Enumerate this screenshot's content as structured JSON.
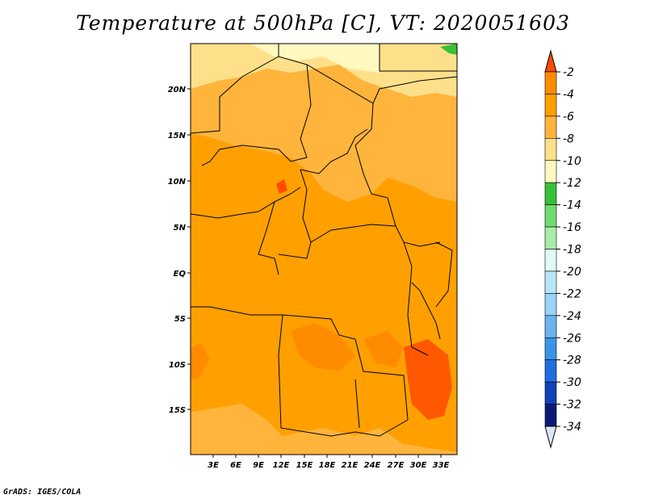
{
  "title": "Temperature at 500hPa [C], VT: 2020051603",
  "credit": "GrADS: IGES/COLA",
  "map": {
    "lat_ticks": [
      "20N",
      "15N",
      "10N",
      "5N",
      "EQ",
      "5S",
      "10S",
      "15S"
    ],
    "lon_ticks": [
      "3E",
      "6E",
      "9E",
      "12E",
      "15E",
      "18E",
      "21E",
      "24E",
      "27E",
      "30E",
      "33E"
    ],
    "lon_range": [
      0,
      35
    ],
    "lat_range": [
      -20,
      24.5
    ],
    "field": "temperature at 500 hPa",
    "dominant_range": "-6 to -4"
  },
  "colorbar": {
    "labels": [
      "-2",
      "-4",
      "-6",
      "-8",
      "-10",
      "-12",
      "-14",
      "-16",
      "-18",
      "-20",
      "-22",
      "-24",
      "-26",
      "-28",
      "-30",
      "-32",
      "-34"
    ],
    "colors": [
      "#ff4b00",
      "#ff8c00",
      "#ffa000",
      "#ffb43c",
      "#ffe08a",
      "#fff8c0",
      "#38c038",
      "#70da70",
      "#a8ecaa",
      "#e0fbf8",
      "#b8e6f8",
      "#9ad2f8",
      "#6ab4f0",
      "#3a94e8",
      "#1e6ee0",
      "#1042b8",
      "#0c1a78",
      "#e0e4f8"
    ]
  }
}
